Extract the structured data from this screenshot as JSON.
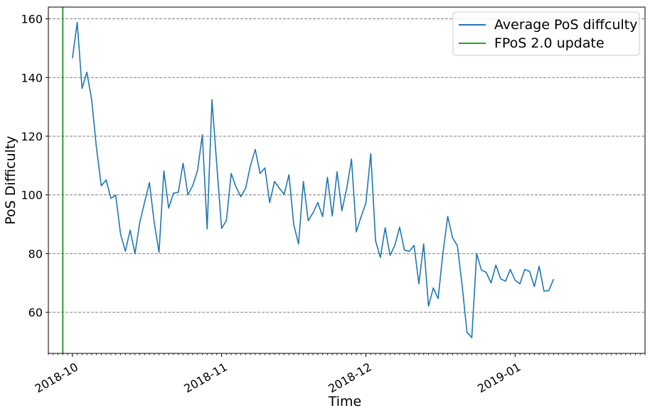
{
  "chart_data": {
    "type": "line",
    "xlabel": "Time",
    "ylabel": "PoS Difficulty",
    "x_tick_labels": [
      "2018-10",
      "2018-11",
      "2018-12",
      "2019-01"
    ],
    "x_ticks": [
      "2018-10-01",
      "2018-11-01",
      "2018-12-01",
      "2019-01-01"
    ],
    "y_ticks": [
      60,
      80,
      100,
      120,
      140,
      160
    ],
    "ylim": [
      46,
      164
    ],
    "xlim": [
      "2018-09-26",
      "2019-01-28"
    ],
    "grid": "horizontal dashed",
    "legend_position": "top-right",
    "vertical_line": {
      "name": "FPoS 2.0 update",
      "x": "2018-09-29",
      "color": "#2ca02c"
    },
    "series": [
      {
        "name": "Average PoS diffculty",
        "color": "#1f77b4",
        "points": [
          [
            "2018-10-01",
            146.6
          ],
          [
            "2018-10-02",
            158.8
          ],
          [
            "2018-10-03",
            136.3
          ],
          [
            "2018-10-04",
            141.8
          ],
          [
            "2018-10-05",
            132.4
          ],
          [
            "2018-10-06",
            116.0
          ],
          [
            "2018-10-07",
            103.1
          ],
          [
            "2018-10-08",
            105.1
          ],
          [
            "2018-10-09",
            98.8
          ],
          [
            "2018-10-10",
            99.9
          ],
          [
            "2018-10-11",
            86.7
          ],
          [
            "2018-10-12",
            80.8
          ],
          [
            "2018-10-13",
            88.0
          ],
          [
            "2018-10-14",
            80.0
          ],
          [
            "2018-10-15",
            90.6
          ],
          [
            "2018-10-16",
            97.5
          ],
          [
            "2018-10-17",
            104.2
          ],
          [
            "2018-10-18",
            90.6
          ],
          [
            "2018-10-19",
            80.4
          ],
          [
            "2018-10-20",
            108.2
          ],
          [
            "2018-10-21",
            95.5
          ],
          [
            "2018-10-22",
            100.6
          ],
          [
            "2018-10-23",
            100.9
          ],
          [
            "2018-10-24",
            110.8
          ],
          [
            "2018-10-25",
            100.0
          ],
          [
            "2018-10-26",
            103.2
          ],
          [
            "2018-10-27",
            108.3
          ],
          [
            "2018-10-28",
            120.5
          ],
          [
            "2018-10-29",
            88.4
          ],
          [
            "2018-10-30",
            132.4
          ],
          [
            "2018-10-31",
            110.3
          ],
          [
            "2018-11-01",
            88.6
          ],
          [
            "2018-11-02",
            91.3
          ],
          [
            "2018-11-03",
            107.3
          ],
          [
            "2018-11-04",
            102.7
          ],
          [
            "2018-11-05",
            99.4
          ],
          [
            "2018-11-06",
            102.3
          ],
          [
            "2018-11-07",
            110.0
          ],
          [
            "2018-11-08",
            115.5
          ],
          [
            "2018-11-09",
            107.3
          ],
          [
            "2018-11-10",
            109.2
          ],
          [
            "2018-11-11",
            97.4
          ],
          [
            "2018-11-12",
            104.6
          ],
          [
            "2018-11-13",
            102.3
          ],
          [
            "2018-11-14",
            100.2
          ],
          [
            "2018-11-15",
            106.9
          ],
          [
            "2018-11-16",
            89.8
          ],
          [
            "2018-11-17",
            83.3
          ],
          [
            "2018-11-18",
            104.6
          ],
          [
            "2018-11-19",
            91.2
          ],
          [
            "2018-11-20",
            93.9
          ],
          [
            "2018-11-21",
            97.4
          ],
          [
            "2018-11-22",
            92.6
          ],
          [
            "2018-11-23",
            106.0
          ],
          [
            "2018-11-24",
            92.8
          ],
          [
            "2018-11-25",
            107.9
          ],
          [
            "2018-11-26",
            94.6
          ],
          [
            "2018-11-27",
            102.1
          ],
          [
            "2018-11-28",
            112.2
          ],
          [
            "2018-11-29",
            87.4
          ],
          [
            "2018-11-30",
            92.6
          ],
          [
            "2018-12-01",
            97.3
          ],
          [
            "2018-12-02",
            114.1
          ],
          [
            "2018-12-03",
            84.4
          ],
          [
            "2018-12-04",
            78.7
          ],
          [
            "2018-12-05",
            88.8
          ],
          [
            "2018-12-06",
            79.4
          ],
          [
            "2018-12-07",
            82.8
          ],
          [
            "2018-12-08",
            89.0
          ],
          [
            "2018-12-09",
            81.2
          ],
          [
            "2018-12-10",
            80.8
          ],
          [
            "2018-12-11",
            82.8
          ],
          [
            "2018-12-12",
            69.7
          ],
          [
            "2018-12-13",
            83.3
          ],
          [
            "2018-12-14",
            62.1
          ],
          [
            "2018-12-15",
            68.3
          ],
          [
            "2018-12-16",
            64.7
          ],
          [
            "2018-12-17",
            80.2
          ],
          [
            "2018-12-18",
            92.7
          ],
          [
            "2018-12-19",
            85.4
          ],
          [
            "2018-12-20",
            82.7
          ],
          [
            "2018-12-21",
            69.0
          ],
          [
            "2018-12-22",
            53.2
          ],
          [
            "2018-12-23",
            51.4
          ],
          [
            "2018-12-24",
            80.0
          ],
          [
            "2018-12-25",
            74.4
          ],
          [
            "2018-12-26",
            73.6
          ],
          [
            "2018-12-27",
            70.0
          ],
          [
            "2018-12-28",
            76.1
          ],
          [
            "2018-12-29",
            71.4
          ],
          [
            "2018-12-30",
            70.6
          ],
          [
            "2018-12-31",
            74.6
          ],
          [
            "2019-01-01",
            70.9
          ],
          [
            "2019-01-02",
            69.7
          ],
          [
            "2019-01-03",
            74.6
          ],
          [
            "2019-01-04",
            74.0
          ],
          [
            "2019-01-05",
            68.8
          ],
          [
            "2019-01-06",
            75.7
          ],
          [
            "2019-01-07",
            67.2
          ],
          [
            "2019-01-08",
            67.4
          ],
          [
            "2019-01-09",
            71.3
          ]
        ]
      }
    ]
  }
}
